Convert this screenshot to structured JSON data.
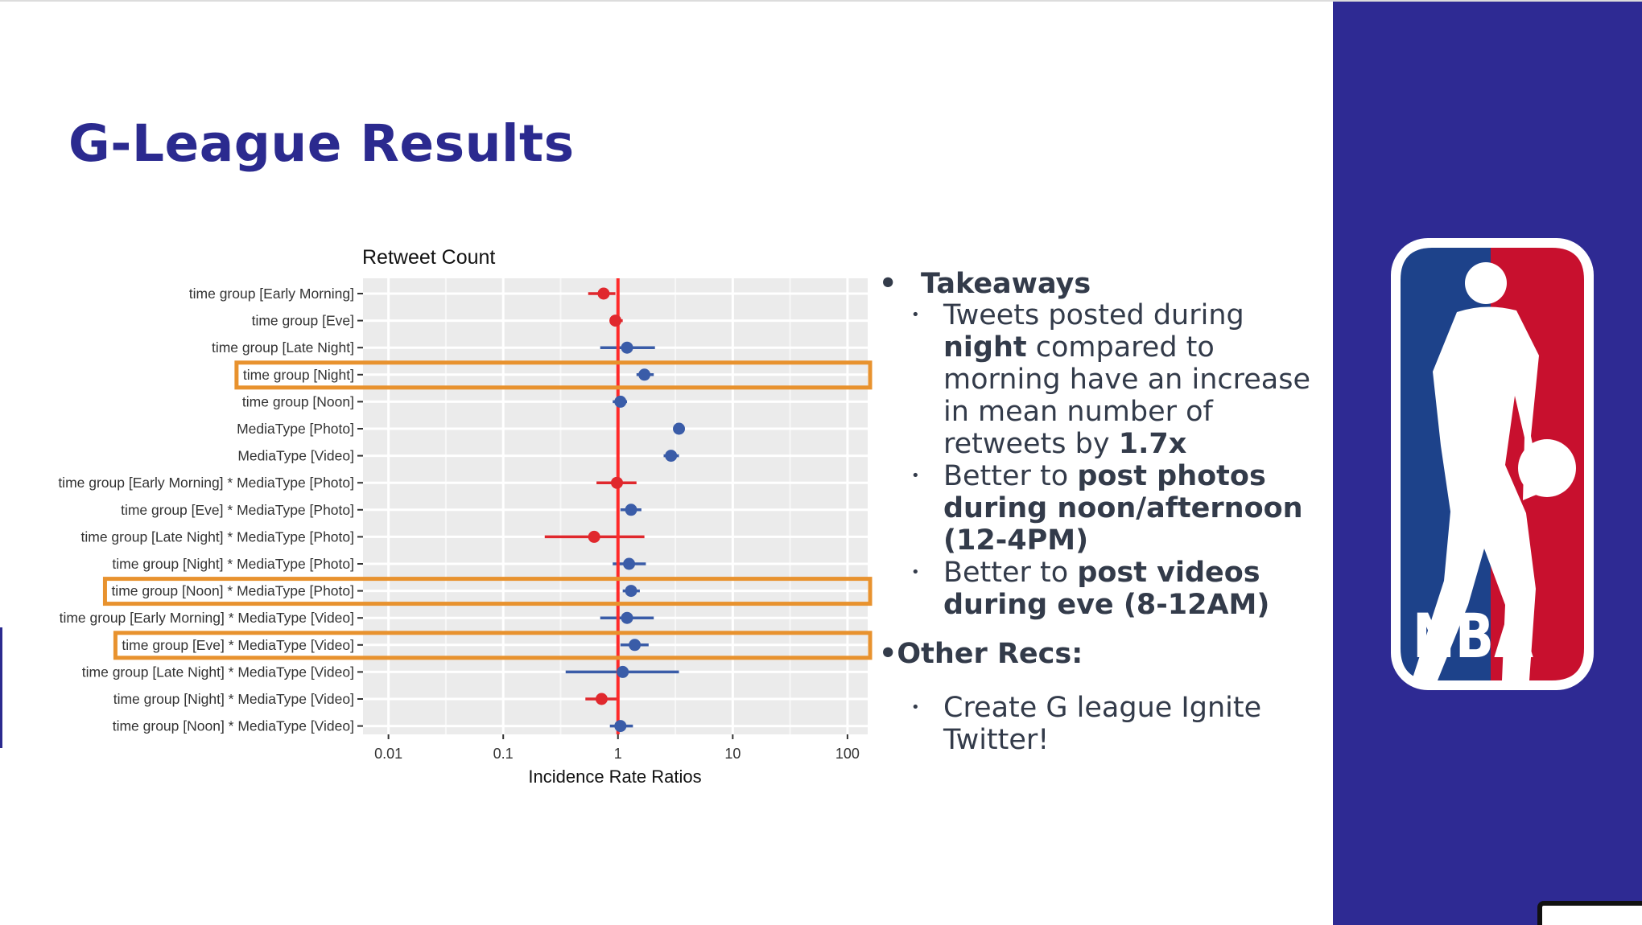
{
  "slide": {
    "title": "G-League Results"
  },
  "chart_data": {
    "type": "forest",
    "title": "Retweet Count",
    "xlabel": "Incidence Rate Ratios",
    "ylabel": "",
    "x_scale": "log",
    "xlim": [
      0.006,
      150
    ],
    "ticks": [
      {
        "value": 0.01,
        "label": "0.01"
      },
      {
        "value": 0.1,
        "label": "0.1"
      },
      {
        "value": 1,
        "label": "1"
      },
      {
        "value": 10,
        "label": "10"
      },
      {
        "value": 100,
        "label": "100"
      }
    ],
    "reference_line": 1,
    "colors": {
      "negative": "#e0282d",
      "positive": "#3a5ca8",
      "reference": "#ff2a2a",
      "highlight": "#e8922e",
      "panel": "#ebebeb"
    },
    "terms": [
      {
        "label": "time group [Early Morning]",
        "estimate": 0.75,
        "low": 0.55,
        "high": 0.95,
        "sign": "negative"
      },
      {
        "label": "time group [Eve]",
        "estimate": 0.95,
        "low": 0.85,
        "high": 1.1,
        "sign": "negative"
      },
      {
        "label": "time group [Late Night]",
        "estimate": 1.2,
        "low": 0.7,
        "high": 2.1,
        "sign": "positive"
      },
      {
        "label": "time group [Night]",
        "estimate": 1.7,
        "low": 1.45,
        "high": 2.05,
        "sign": "positive"
      },
      {
        "label": "time group [Noon]",
        "estimate": 1.05,
        "low": 0.9,
        "high": 1.2,
        "sign": "positive"
      },
      {
        "label": "MediaType [Photo]",
        "estimate": 3.4,
        "low": 3.1,
        "high": 3.7,
        "sign": "positive"
      },
      {
        "label": "MediaType [Video]",
        "estimate": 2.9,
        "low": 2.5,
        "high": 3.4,
        "sign": "positive"
      },
      {
        "label": "time group [Early Morning] * MediaType [Photo]",
        "estimate": 0.98,
        "low": 0.65,
        "high": 1.45,
        "sign": "negative"
      },
      {
        "label": "time group [Eve] * MediaType [Photo]",
        "estimate": 1.3,
        "low": 1.05,
        "high": 1.6,
        "sign": "positive"
      },
      {
        "label": "time group [Late Night] * MediaType [Photo]",
        "estimate": 0.62,
        "low": 0.23,
        "high": 1.7,
        "sign": "negative"
      },
      {
        "label": "time group [Night] * MediaType [Photo]",
        "estimate": 1.25,
        "low": 0.9,
        "high": 1.75,
        "sign": "positive"
      },
      {
        "label": "time group [Noon] * MediaType [Photo]",
        "estimate": 1.3,
        "low": 1.1,
        "high": 1.55,
        "sign": "positive"
      },
      {
        "label": "time group [Early Morning] * MediaType [Video]",
        "estimate": 1.2,
        "low": 0.7,
        "high": 2.05,
        "sign": "positive"
      },
      {
        "label": "time group [Eve] * MediaType [Video]",
        "estimate": 1.4,
        "low": 1.05,
        "high": 1.85,
        "sign": "positive"
      },
      {
        "label": "time group [Late Night] * MediaType [Video]",
        "estimate": 1.1,
        "low": 0.35,
        "high": 3.4,
        "sign": "positive"
      },
      {
        "label": "time group [Night] * MediaType [Video]",
        "estimate": 0.72,
        "low": 0.52,
        "high": 1.0,
        "sign": "negative"
      },
      {
        "label": "time group [Noon] * MediaType [Video]",
        "estimate": 1.05,
        "low": 0.85,
        "high": 1.35,
        "sign": "positive"
      }
    ],
    "highlighted_terms": [
      "time group [Night]",
      "time group [Noon] * MediaType [Photo]",
      "time group [Eve] * MediaType [Video]"
    ]
  },
  "takeaways": {
    "heading": "Takeaways",
    "bullet1": {
      "t1": "Tweets posted during ",
      "b1": "night",
      "t2": " compared to morning have an increase in mean number of retweets by ",
      "b2": "1.7x"
    },
    "bullet2": {
      "t1": "Better to ",
      "b1": "post photos during noon/afternoon (12-4PM)"
    },
    "bullet3": {
      "t1": "Better to ",
      "b1": "post videos during eve (8-12AM)"
    }
  },
  "other_recs": {
    "heading": "•Other Recs:",
    "bullet1": "Create G league Ignite Twitter!"
  },
  "logo": {
    "text": "NBA",
    "colors": {
      "blue": "#1d428a",
      "red": "#c8102e",
      "border": "#ffffff"
    }
  },
  "bullets": {
    "main": "•",
    "sub": "•"
  }
}
